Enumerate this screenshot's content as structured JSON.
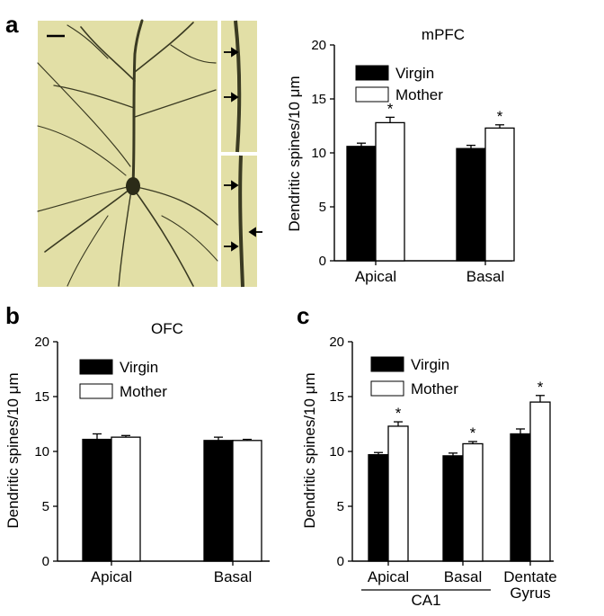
{
  "panel_labels": [
    "a",
    "b",
    "c"
  ],
  "legend": {
    "virgin": "Virgin",
    "mother": "Mother"
  },
  "colors": {
    "virgin": "#000000",
    "mother": "#ffffff",
    "stroke": "#000000",
    "photo_bg": "#e2dfa6",
    "dendrite": "#3a3a22"
  },
  "micrograph": {
    "arrow_count_top": 2,
    "arrow_count_bottom": 3
  },
  "chart_data": [
    {
      "id": "a",
      "type": "bar",
      "title": "mPFC",
      "ylabel": "Dendritic spines/10 μm",
      "ylim": [
        0,
        20
      ],
      "yticks": [
        "0",
        "5",
        "10",
        "15",
        "20"
      ],
      "categories": [
        "Apical",
        "Basal"
      ],
      "series": [
        {
          "name": "Virgin",
          "values": [
            10.6,
            10.4
          ],
          "errors": [
            0.3,
            0.3
          ]
        },
        {
          "name": "Mother",
          "values": [
            12.8,
            12.3
          ],
          "errors": [
            0.5,
            0.3
          ]
        }
      ],
      "significance": [
        "*",
        "*"
      ],
      "legend_position": "top-left",
      "grid": false
    },
    {
      "id": "b",
      "type": "bar",
      "title": "OFC",
      "ylabel": "Dendritic spines/10 μm",
      "ylim": [
        0,
        20
      ],
      "yticks": [
        "0",
        "5",
        "10",
        "15",
        "20"
      ],
      "categories": [
        "Apical",
        "Basal"
      ],
      "series": [
        {
          "name": "Virgin",
          "values": [
            11.1,
            11.0
          ],
          "errors": [
            0.5,
            0.3
          ]
        },
        {
          "name": "Mother",
          "values": [
            11.3,
            11.0
          ],
          "errors": [
            0.15,
            0.1
          ]
        }
      ],
      "significance": [
        "",
        ""
      ],
      "legend_position": "top-left",
      "grid": false
    },
    {
      "id": "c",
      "type": "bar",
      "title": "",
      "ylabel": "Dendritic spines/10 μm",
      "ylim": [
        0,
        20
      ],
      "yticks": [
        "0",
        "5",
        "10",
        "15",
        "20"
      ],
      "categories": [
        "Apical",
        "Basal",
        "Dentate Gyrus"
      ],
      "category_lines": [
        [
          "Apical"
        ],
        [
          "Basal"
        ],
        [
          "Dentate",
          "Gyrus"
        ]
      ],
      "group_label": "CA1",
      "series": [
        {
          "name": "Virgin",
          "values": [
            9.7,
            9.6,
            11.6
          ],
          "errors": [
            0.2,
            0.25,
            0.45
          ]
        },
        {
          "name": "Mother",
          "values": [
            12.3,
            10.7,
            14.5
          ],
          "errors": [
            0.4,
            0.2,
            0.6
          ]
        }
      ],
      "significance": [
        "*",
        "*",
        "*"
      ],
      "legend_position": "top-left",
      "grid": false
    }
  ]
}
